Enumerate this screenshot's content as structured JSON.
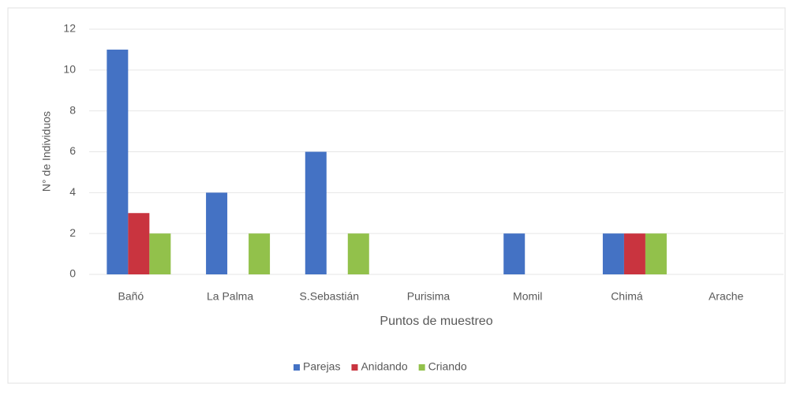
{
  "chart_data": {
    "type": "bar",
    "categories": [
      "Bañó",
      "La Palma",
      "S.Sebastián",
      "Purisima",
      "Momil",
      "Chimá",
      "Arache"
    ],
    "series": [
      {
        "name": "Parejas",
        "color": "#4472c4",
        "values": [
          11,
          4,
          6,
          0,
          2,
          2,
          0
        ]
      },
      {
        "name": "Anidando",
        "color": "#c9343f",
        "values": [
          3,
          0,
          0,
          0,
          0,
          2,
          0
        ]
      },
      {
        "name": "Criando",
        "color": "#92c14b",
        "values": [
          2,
          2,
          2,
          0,
          0,
          2,
          0
        ]
      }
    ],
    "ylabel": "N° de Individuos",
    "xlabel": "Puntos de muestreo",
    "ylim": [
      0,
      12
    ],
    "yticks": [
      0,
      2,
      4,
      6,
      8,
      10,
      12
    ],
    "grid": true,
    "legend": "bottom"
  }
}
